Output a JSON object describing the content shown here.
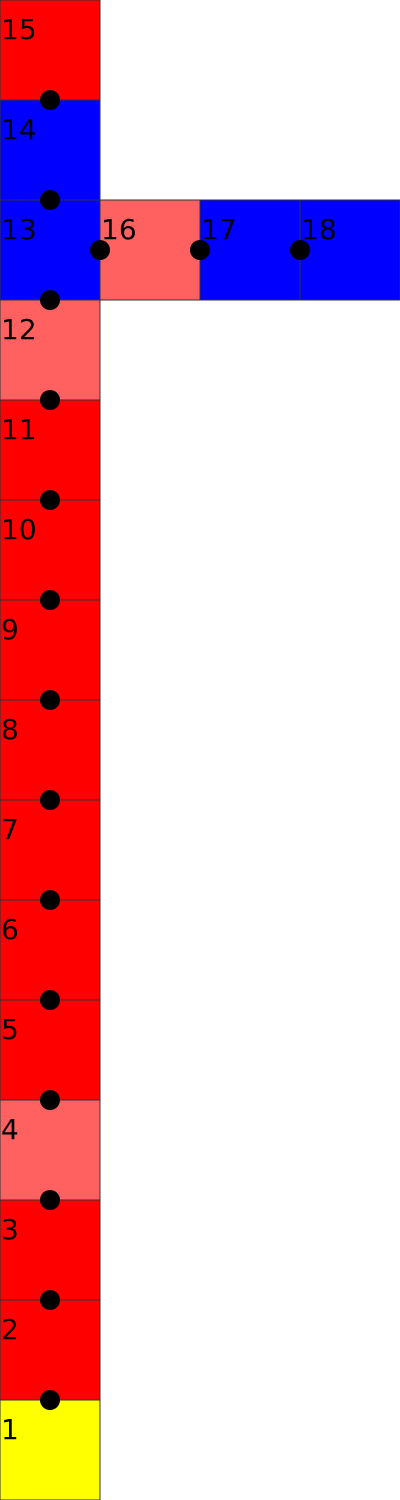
{
  "colors": {
    "red": "#ff0000",
    "light_red": "#ff6060",
    "blue": "#0000ff",
    "yellow": "#ffff00",
    "joint": "#000000",
    "cell_border": "#333333"
  },
  "cells": [
    {
      "id": "cell-1",
      "label": "1",
      "color": "yellow"
    },
    {
      "id": "cell-2",
      "label": "2",
      "color": "red"
    },
    {
      "id": "cell-3",
      "label": "3",
      "color": "red"
    },
    {
      "id": "cell-4",
      "label": "4",
      "color": "light_red"
    },
    {
      "id": "cell-5",
      "label": "5",
      "color": "red"
    },
    {
      "id": "cell-6",
      "label": "6",
      "color": "red"
    },
    {
      "id": "cell-7",
      "label": "7",
      "color": "red"
    },
    {
      "id": "cell-8",
      "label": "8",
      "color": "red"
    },
    {
      "id": "cell-9",
      "label": "9",
      "color": "red"
    },
    {
      "id": "cell-10",
      "label": "10",
      "color": "red"
    },
    {
      "id": "cell-11",
      "label": "11",
      "color": "red"
    },
    {
      "id": "cell-12",
      "label": "12",
      "color": "light_red"
    },
    {
      "id": "cell-13",
      "label": "13",
      "color": "blue"
    },
    {
      "id": "cell-14",
      "label": "14",
      "color": "blue"
    },
    {
      "id": "cell-15",
      "label": "15",
      "color": "red"
    },
    {
      "id": "cell-16",
      "label": "16",
      "color": "light_red"
    },
    {
      "id": "cell-17",
      "label": "17",
      "color": "blue"
    },
    {
      "id": "cell-18",
      "label": "18",
      "color": "blue"
    }
  ]
}
